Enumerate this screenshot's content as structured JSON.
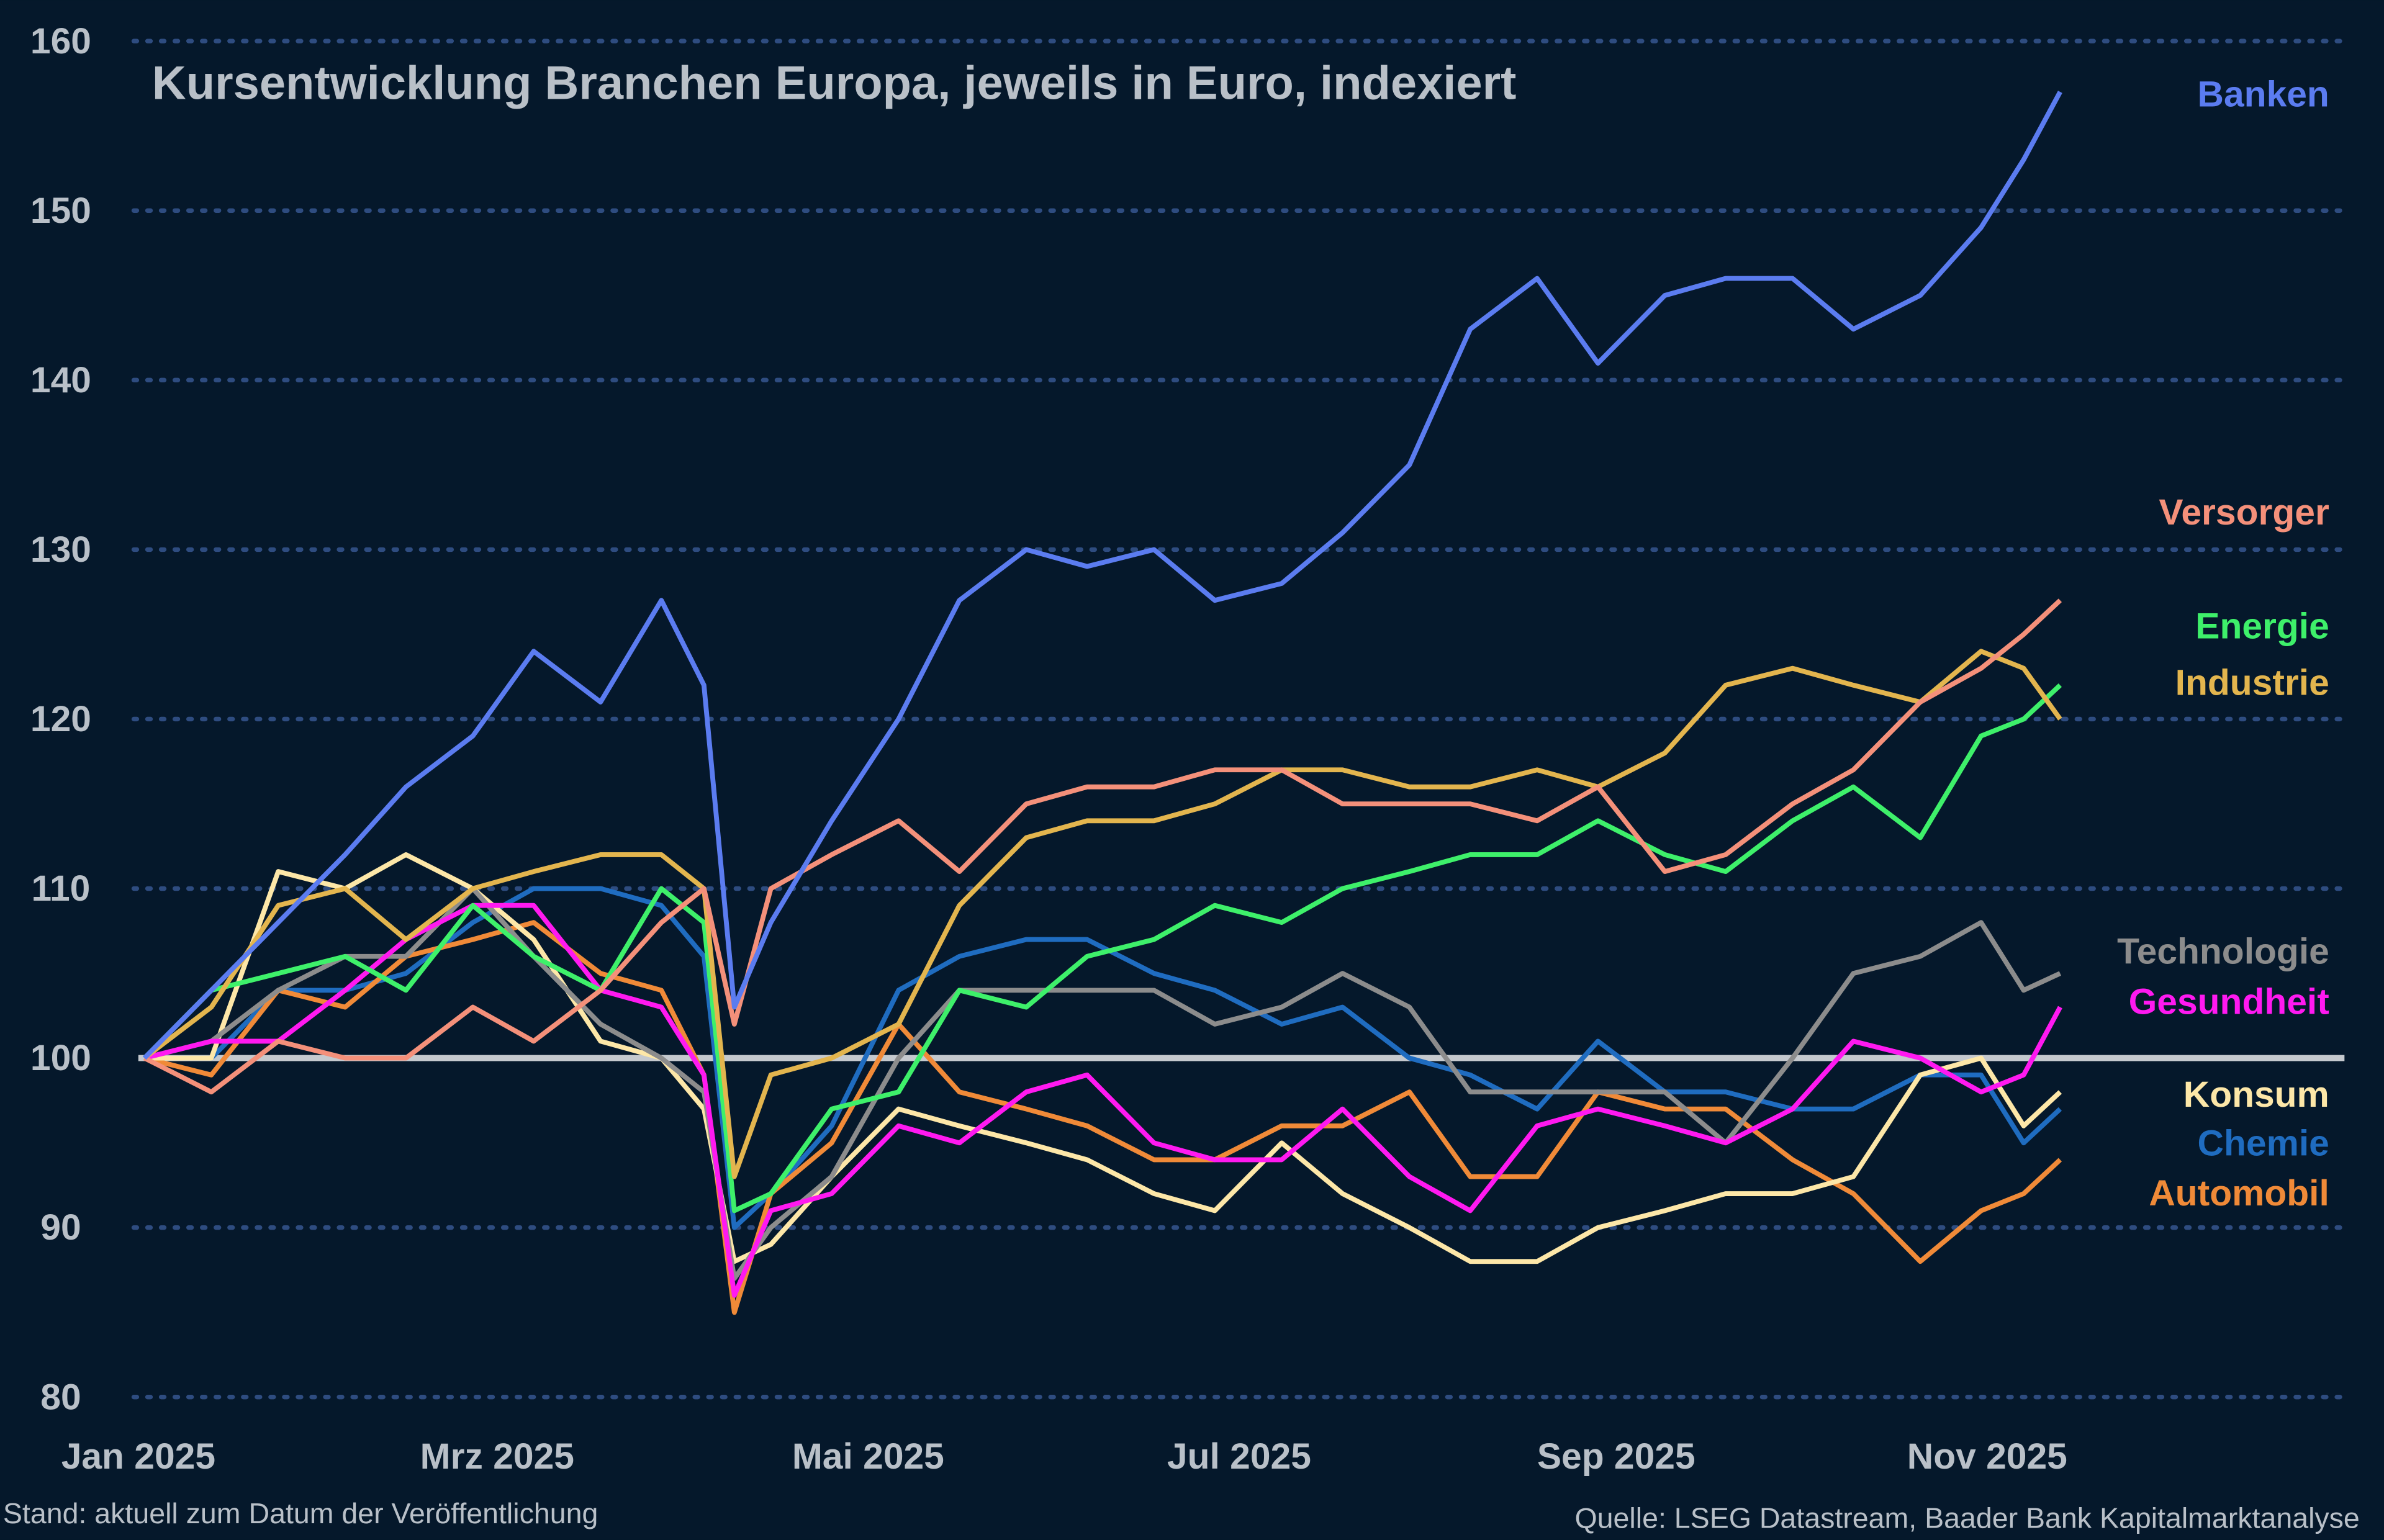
{
  "chart_data": {
    "type": "line",
    "title": "Kursentwicklung Branchen Europa, jeweils in Euro, indexiert",
    "xlabel": "",
    "ylabel": "",
    "ylim": [
      80,
      160
    ],
    "xlim": [
      "2025-01-01",
      "2025-12-31"
    ],
    "grid": "horizontal dotted",
    "reference_line": 100,
    "yticks": [
      "80",
      "90",
      "100",
      "110",
      "120",
      "130",
      "140",
      "150",
      "160"
    ],
    "xticks": [
      {
        "date": "2025-01-01",
        "label": "Jan 2025"
      },
      {
        "date": "2025-03-01",
        "label": "Mrz 2025"
      },
      {
        "date": "2025-05-01",
        "label": "Mai 2025"
      },
      {
        "date": "2025-07-01",
        "label": "Jul 2025"
      },
      {
        "date": "2025-09-01",
        "label": "Sep 2025"
      },
      {
        "date": "2025-11-01",
        "label": "Nov 2025"
      }
    ],
    "x": [
      "2025-01-02",
      "2025-01-13",
      "2025-01-24",
      "2025-02-04",
      "2025-02-14",
      "2025-02-25",
      "2025-03-07",
      "2025-03-18",
      "2025-03-28",
      "2025-04-04",
      "2025-04-09",
      "2025-04-15",
      "2025-04-25",
      "2025-05-06",
      "2025-05-16",
      "2025-05-27",
      "2025-06-06",
      "2025-06-17",
      "2025-06-27",
      "2025-07-08",
      "2025-07-18",
      "2025-07-29",
      "2025-08-08",
      "2025-08-19",
      "2025-08-29",
      "2025-09-09",
      "2025-09-19",
      "2025-09-30",
      "2025-10-10",
      "2025-10-21",
      "2025-10-31",
      "2025-11-07",
      "2025-11-13"
    ],
    "series": [
      {
        "name": "Banken",
        "color": "#5b7cf0",
        "values": [
          100,
          104,
          108,
          112,
          116,
          119,
          124,
          121,
          127,
          122,
          103,
          108,
          114,
          120,
          127,
          130,
          129,
          130,
          127,
          128,
          131,
          135,
          143,
          146,
          141,
          145,
          146,
          146,
          143,
          145,
          149,
          153,
          157
        ]
      },
      {
        "name": "Versorger",
        "color": "#f4907a",
        "values": [
          100,
          98,
          101,
          100,
          100,
          103,
          101,
          104,
          108,
          110,
          102,
          110,
          112,
          114,
          111,
          115,
          116,
          116,
          117,
          117,
          115,
          115,
          115,
          114,
          116,
          111,
          112,
          115,
          117,
          121,
          123,
          125,
          127
        ]
      },
      {
        "name": "Energie",
        "color": "#3ef06a",
        "values": [
          100,
          104,
          105,
          106,
          104,
          109,
          106,
          104,
          110,
          108,
          91,
          92,
          97,
          98,
          104,
          103,
          106,
          107,
          109,
          108,
          110,
          111,
          112,
          112,
          114,
          112,
          111,
          114,
          116,
          113,
          119,
          120,
          122
        ]
      },
      {
        "name": "Industrie",
        "color": "#e3b54e",
        "values": [
          100,
          103,
          109,
          110,
          107,
          110,
          111,
          112,
          112,
          110,
          93,
          99,
          100,
          102,
          109,
          113,
          114,
          114,
          115,
          117,
          117,
          116,
          116,
          117,
          116,
          118,
          122,
          123,
          122,
          121,
          124,
          123,
          120
        ]
      },
      {
        "name": "Technologie",
        "color": "#8c8c8c",
        "values": [
          100,
          101,
          104,
          106,
          106,
          110,
          106,
          102,
          100,
          98,
          87,
          90,
          93,
          100,
          104,
          104,
          104,
          104,
          102,
          103,
          105,
          103,
          98,
          98,
          98,
          98,
          95,
          100,
          105,
          106,
          108,
          104,
          105
        ]
      },
      {
        "name": "Gesundheit",
        "color": "#ff19f0",
        "values": [
          100,
          101,
          101,
          104,
          107,
          109,
          109,
          104,
          103,
          99,
          86,
          91,
          92,
          96,
          95,
          98,
          99,
          95,
          94,
          94,
          97,
          93,
          91,
          96,
          97,
          96,
          95,
          97,
          101,
          100,
          98,
          99,
          103
        ]
      },
      {
        "name": "Konsum",
        "color": "#fde7a8",
        "values": [
          100,
          100,
          111,
          110,
          112,
          110,
          107,
          101,
          100,
          97,
          88,
          89,
          93,
          97,
          96,
          95,
          94,
          92,
          91,
          95,
          92,
          90,
          88,
          88,
          90,
          91,
          92,
          92,
          93,
          99,
          100,
          96,
          98
        ]
      },
      {
        "name": "Chemie",
        "color": "#1f6cc0",
        "values": [
          100,
          100,
          104,
          104,
          105,
          108,
          110,
          110,
          109,
          106,
          90,
          92,
          96,
          104,
          106,
          107,
          107,
          105,
          104,
          102,
          103,
          100,
          99,
          97,
          101,
          98,
          98,
          97,
          97,
          99,
          99,
          95,
          97
        ]
      },
      {
        "name": "Automobil",
        "color": "#f08a38",
        "values": [
          100,
          99,
          104,
          103,
          106,
          107,
          108,
          105,
          104,
          99,
          85,
          92,
          95,
          102,
          98,
          97,
          96,
          94,
          94,
          96,
          96,
          98,
          93,
          93,
          98,
          97,
          97,
          94,
          92,
          88,
          91,
          92,
          94
        ]
      }
    ],
    "note_left": "Stand: aktuell zum Datum der Veröffentlichung",
    "source": "Quelle: LSEG Datastream, Baader Bank Kapitalmarktanalyse"
  }
}
